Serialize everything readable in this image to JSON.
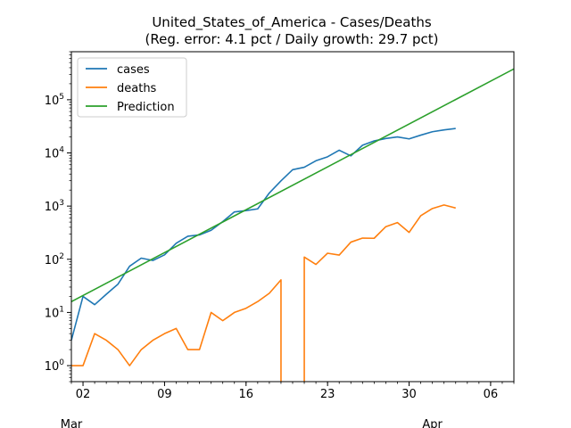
{
  "chart_data": {
    "type": "line",
    "title": "United_States_of_America - Cases/Deaths",
    "subtitle": "(Reg. error: 4.1 pct / Daily growth: 29.7 pct)",
    "xlabel": "",
    "ylabel": "",
    "y_scale": "log",
    "xlim": [
      "2020-03-01",
      "2020-04-08"
    ],
    "ylim": [
      0.5,
      800000
    ],
    "grid": false,
    "legend_position": "top-left",
    "x_ticks": [
      {
        "date": "2020-03-02",
        "label": "02"
      },
      {
        "date": "2020-03-09",
        "label": "09"
      },
      {
        "date": "2020-03-16",
        "label": "16"
      },
      {
        "date": "2020-03-23",
        "label": "23"
      },
      {
        "date": "2020-03-30",
        "label": "30"
      },
      {
        "date": "2020-04-06",
        "label": "06"
      }
    ],
    "x_month_labels": [
      {
        "date": "2020-03-01",
        "label": "Mar"
      },
      {
        "date": "2020-04-01",
        "label": "Apr"
      }
    ],
    "y_ticks": [
      {
        "value": 1,
        "label": "10^0"
      },
      {
        "value": 10,
        "label": "10^1"
      },
      {
        "value": 100,
        "label": "10^2"
      },
      {
        "value": 1000,
        "label": "10^3"
      },
      {
        "value": 10000,
        "label": "10^4"
      },
      {
        "value": 100000,
        "label": "10^5"
      }
    ],
    "series": [
      {
        "name": "cases",
        "color": "#1f77b4",
        "points": [
          [
            "2020-03-01",
            3
          ],
          [
            "2020-03-02",
            20
          ],
          [
            "2020-03-03",
            14
          ],
          [
            "2020-03-04",
            22
          ],
          [
            "2020-03-05",
            34
          ],
          [
            "2020-03-06",
            74
          ],
          [
            "2020-03-07",
            105
          ],
          [
            "2020-03-08",
            95
          ],
          [
            "2020-03-09",
            121
          ],
          [
            "2020-03-10",
            200
          ],
          [
            "2020-03-11",
            271
          ],
          [
            "2020-03-12",
            287
          ],
          [
            "2020-03-13",
            351
          ],
          [
            "2020-03-14",
            511
          ],
          [
            "2020-03-15",
            777
          ],
          [
            "2020-03-16",
            823
          ],
          [
            "2020-03-17",
            887
          ],
          [
            "2020-03-18",
            1766
          ],
          [
            "2020-03-19",
            2988
          ],
          [
            "2020-03-20",
            4835
          ],
          [
            "2020-03-21",
            5374
          ],
          [
            "2020-03-22",
            7123
          ],
          [
            "2020-03-23",
            8459
          ],
          [
            "2020-03-24",
            11236
          ],
          [
            "2020-03-25",
            8789
          ],
          [
            "2020-03-26",
            13963
          ],
          [
            "2020-03-27",
            16797
          ],
          [
            "2020-03-28",
            18695
          ],
          [
            "2020-03-29",
            19979
          ],
          [
            "2020-03-30",
            18360
          ],
          [
            "2020-03-31",
            21595
          ],
          [
            "2020-04-01",
            24998
          ],
          [
            "2020-04-02",
            27103
          ],
          [
            "2020-04-03",
            28819
          ]
        ]
      },
      {
        "name": "deaths",
        "color": "#ff7f0e",
        "segments": [
          [
            [
              "2020-03-01",
              1
            ],
            [
              "2020-03-02",
              1
            ],
            [
              "2020-03-03",
              4
            ],
            [
              "2020-03-04",
              3
            ],
            [
              "2020-03-05",
              2
            ],
            [
              "2020-03-06",
              1
            ],
            [
              "2020-03-07",
              2
            ],
            [
              "2020-03-08",
              3
            ],
            [
              "2020-03-09",
              4
            ],
            [
              "2020-03-10",
              5
            ],
            [
              "2020-03-11",
              2
            ],
            [
              "2020-03-12",
              2
            ],
            [
              "2020-03-13",
              10
            ],
            [
              "2020-03-14",
              7
            ],
            [
              "2020-03-15",
              10
            ],
            [
              "2020-03-16",
              12
            ],
            [
              "2020-03-17",
              16
            ],
            [
              "2020-03-18",
              23
            ],
            [
              "2020-03-19",
              41
            ],
            [
              "2020-03-19",
              0.3
            ]
          ],
          [
            [
              "2020-03-21",
              0.3
            ],
            [
              "2020-03-21",
              110
            ],
            [
              "2020-03-22",
              80
            ],
            [
              "2020-03-23",
              130
            ],
            [
              "2020-03-24",
              120
            ],
            [
              "2020-03-25",
              210
            ],
            [
              "2020-03-26",
              250
            ],
            [
              "2020-03-27",
              248
            ],
            [
              "2020-03-28",
              410
            ],
            [
              "2020-03-29",
              490
            ],
            [
              "2020-03-30",
              320
            ],
            [
              "2020-03-31",
              660
            ],
            [
              "2020-04-01",
              900
            ],
            [
              "2020-04-02",
              1050
            ],
            [
              "2020-04-03",
              920
            ]
          ]
        ]
      },
      {
        "name": "Prediction",
        "color": "#2ca02c",
        "points": [
          [
            "2020-03-01",
            16
          ],
          [
            "2020-04-08",
            380000
          ]
        ]
      }
    ]
  }
}
